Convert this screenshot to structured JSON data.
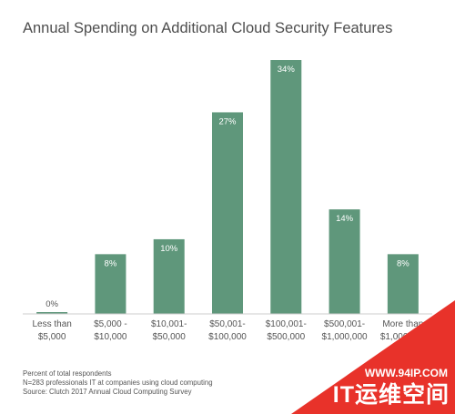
{
  "chart_data": {
    "type": "bar",
    "title": "Annual Spending on Additional Cloud Security Features",
    "categories": [
      [
        "Less than",
        "$5,000"
      ],
      [
        "$5,000 -",
        "$10,000"
      ],
      [
        "$10,001-",
        "$50,000"
      ],
      [
        "$50,001-",
        "$100,000"
      ],
      [
        "$100,001-",
        "$500,000"
      ],
      [
        "$500,001-",
        "$1,000,000"
      ],
      [
        "More than",
        "$1,000,000"
      ]
    ],
    "values": [
      0,
      8,
      10,
      27,
      34,
      14,
      8
    ],
    "value_labels": [
      "0%",
      "8%",
      "10%",
      "27%",
      "34%",
      "14%",
      "8%"
    ],
    "ylim": [
      0,
      34
    ],
    "bar_color": "#5f977b",
    "grid": false
  },
  "notes": {
    "line1": "Percent of total respondents",
    "line2": "N=283 professionals IT at companies using cloud computing",
    "line3": "Source: Clutch 2017 Annual Cloud Computing Survey"
  },
  "watermark": {
    "url": "WWW.94IP.COM",
    "brand": "IT运维空间",
    "color": "#e8322a"
  }
}
